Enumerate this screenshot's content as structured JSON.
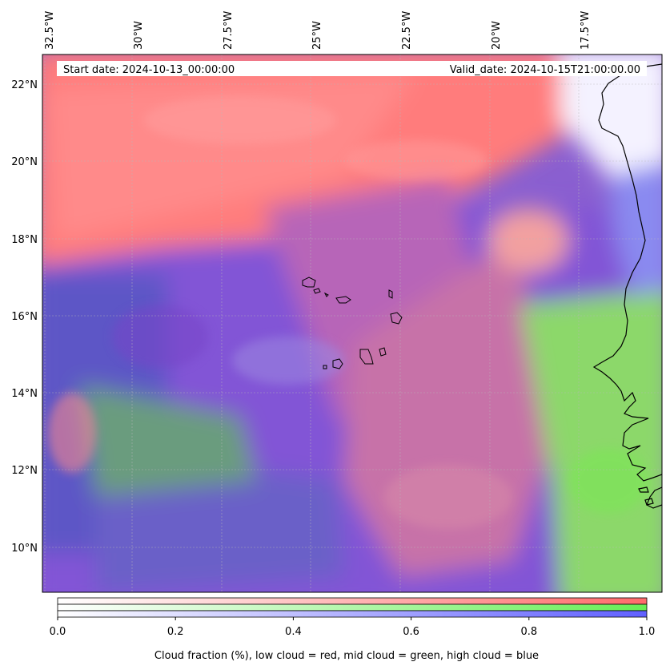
{
  "header": {
    "start_date": "Start date: 2024-10-13_00:00:00",
    "valid_date": "Valid_date: 2024-10-15T21:00:00.00"
  },
  "axes": {
    "lon_labels": [
      "32.5°W",
      "30°W",
      "27.5°W",
      "25°W",
      "22.5°W",
      "20°W",
      "17.5°W"
    ],
    "lat_labels": [
      "22°N",
      "20°N",
      "18°N",
      "16°N",
      "14°N",
      "12°N",
      "10°N"
    ]
  },
  "colorbar": {
    "ticks": [
      "0.0",
      "0.2",
      "0.4",
      "0.6",
      "0.8",
      "1.0"
    ],
    "tick_values": [
      0.0,
      0.2,
      0.4,
      0.6,
      0.8,
      1.0
    ],
    "range": [
      0,
      1
    ],
    "label": "Cloud fraction (%), low cloud = red, mid cloud = green, high cloud = blue",
    "colors": {
      "low": "#ff6666",
      "mid": "#66ee55",
      "high": "#6666ff"
    }
  },
  "map": {
    "colors": {
      "low_cloud": "#ff7f7f",
      "mid_cloud": "#77e060",
      "high_cloud": "#6b50d8",
      "coastline": "#000000"
    }
  }
}
